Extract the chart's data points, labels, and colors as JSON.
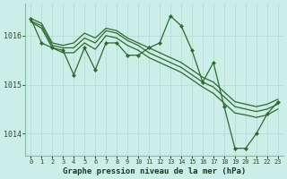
{
  "background_color": "#cceee8",
  "grid_color": "#b8ddd5",
  "line_color": "#2d6a2d",
  "title": "Graphe pression niveau de la mer (hPa)",
  "ylim": [
    1013.55,
    1016.65
  ],
  "xlim": [
    -0.5,
    23.5
  ],
  "yticks": [
    1014,
    1015,
    1016
  ],
  "xticks": [
    0,
    1,
    2,
    3,
    4,
    5,
    6,
    7,
    8,
    9,
    10,
    11,
    12,
    13,
    14,
    15,
    16,
    17,
    18,
    19,
    20,
    21,
    22,
    23
  ],
  "series": [
    {
      "x": [
        0,
        1,
        2,
        3,
        4,
        5,
        6,
        7,
        8,
        9,
        10,
        11,
        12,
        13,
        14,
        15,
        16,
        17,
        18,
        19,
        20,
        21,
        22,
        23
      ],
      "y": [
        1016.35,
        1016.25,
        1015.85,
        1015.8,
        1015.85,
        1016.05,
        1015.95,
        1016.15,
        1016.1,
        1015.95,
        1015.85,
        1015.75,
        1015.65,
        1015.55,
        1015.45,
        1015.3,
        1015.15,
        1015.05,
        1014.85,
        1014.65,
        1014.6,
        1014.55,
        1014.6,
        1014.7
      ],
      "markers": false
    },
    {
      "x": [
        0,
        1,
        2,
        3,
        4,
        5,
        6,
        7,
        8,
        9,
        10,
        11,
        12,
        13,
        14,
        15,
        16,
        17,
        18,
        19,
        20,
        21,
        22,
        23
      ],
      "y": [
        1016.3,
        1016.2,
        1015.8,
        1015.75,
        1015.75,
        1015.95,
        1015.85,
        1016.1,
        1016.05,
        1015.9,
        1015.8,
        1015.65,
        1015.55,
        1015.45,
        1015.35,
        1015.2,
        1015.05,
        1014.95,
        1014.75,
        1014.55,
        1014.5,
        1014.45,
        1014.5,
        1014.6
      ],
      "markers": false
    },
    {
      "x": [
        0,
        1,
        2,
        3,
        4,
        5,
        6,
        7,
        8,
        9,
        10,
        11,
        12,
        13,
        14,
        15,
        16,
        17,
        18,
        19,
        20,
        21,
        22,
        23
      ],
      "y": [
        1016.28,
        1016.15,
        1015.75,
        1015.65,
        1015.65,
        1015.85,
        1015.72,
        1016.0,
        1015.95,
        1015.8,
        1015.7,
        1015.55,
        1015.45,
        1015.35,
        1015.25,
        1015.1,
        1014.95,
        1014.82,
        1014.62,
        1014.42,
        1014.38,
        1014.33,
        1014.38,
        1014.5
      ],
      "markers": false
    },
    {
      "x": [
        0,
        1,
        2,
        3,
        4,
        5,
        6,
        7,
        8,
        9,
        10,
        11,
        12,
        13,
        14,
        15,
        16,
        17,
        18,
        19,
        20,
        21,
        22,
        23
      ],
      "y": [
        1016.35,
        1015.85,
        1015.75,
        1015.7,
        1015.2,
        1015.75,
        1015.3,
        1015.85,
        1015.85,
        1015.6,
        1015.6,
        1015.75,
        1015.85,
        1016.4,
        1016.2,
        1015.7,
        1015.05,
        1015.45,
        1014.55,
        1013.7,
        1013.7,
        1014.0,
        1014.4,
        1014.65
      ],
      "markers": true
    }
  ]
}
